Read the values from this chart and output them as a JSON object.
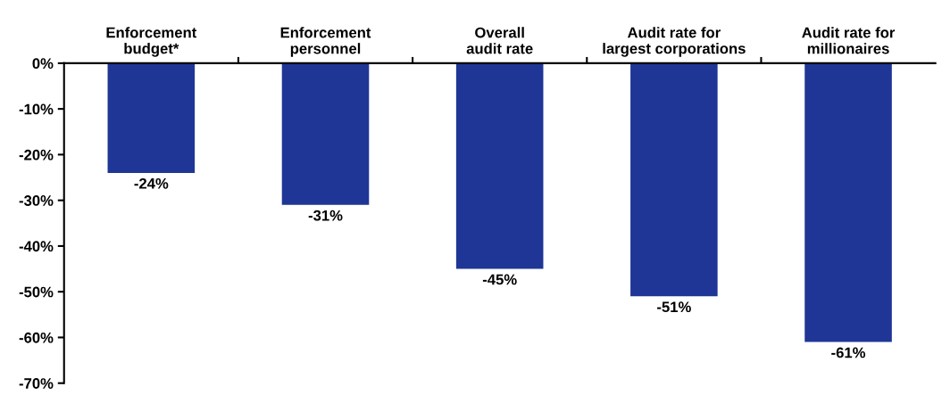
{
  "chart_data": {
    "type": "bar",
    "categories": [
      "Enforcement budget*",
      "Enforcement personnel",
      "Overall audit rate",
      "Audit rate for largest corporations",
      "Audit rate for millionaires"
    ],
    "values": [
      -24,
      -31,
      -45,
      -51,
      -61
    ],
    "value_labels": [
      "-24%",
      "-31%",
      "-45%",
      "-51%",
      "-61%"
    ],
    "color": "#1f3696",
    "ylim": [
      -70,
      0
    ],
    "yticks": [
      {
        "value": 0,
        "label": "0%"
      },
      {
        "value": -10,
        "label": "-10%"
      },
      {
        "value": -20,
        "label": "-20%"
      },
      {
        "value": -30,
        "label": "-30%"
      },
      {
        "value": -40,
        "label": "-40%"
      },
      {
        "value": -50,
        "label": "-50%"
      },
      {
        "value": -60,
        "label": "-60%"
      },
      {
        "value": -70,
        "label": "-70%"
      }
    ],
    "grid": false,
    "legend": false
  }
}
